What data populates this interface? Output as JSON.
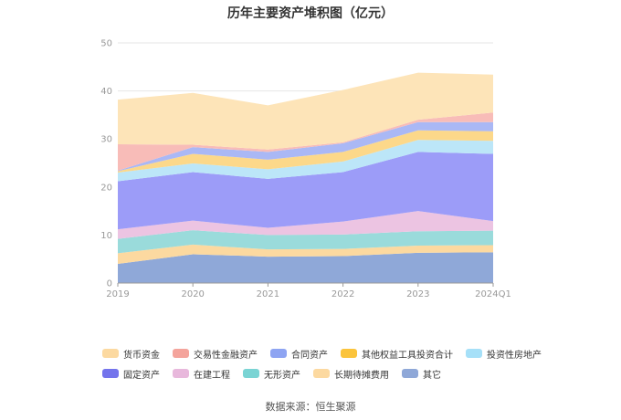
{
  "chart_data": {
    "type": "area",
    "stacked": true,
    "title": "历年主要资产堆积图（亿元）",
    "x": [
      "2019",
      "2020",
      "2021",
      "2022",
      "2023",
      "2024Q1"
    ],
    "ylim": [
      0,
      50
    ],
    "yticks": [
      0,
      10,
      20,
      30,
      40,
      50
    ],
    "grid": true,
    "legend_position": "bottom",
    "series": [
      {
        "name": "其它",
        "color": "#8fa8d8",
        "values": [
          4.0,
          6.0,
          5.5,
          5.6,
          6.3,
          6.4
        ]
      },
      {
        "name": "长期待摊费用",
        "color": "#fcd9a0",
        "values": [
          2.2,
          2.0,
          1.5,
          1.5,
          1.5,
          1.5
        ]
      },
      {
        "name": "无形资产",
        "color": "#9adbdb",
        "values": [
          3.0,
          3.0,
          3.0,
          3.0,
          3.0,
          3.0
        ]
      },
      {
        "name": "在建工程",
        "color": "#ecc4e2",
        "values": [
          2.0,
          2.0,
          1.5,
          2.7,
          4.2,
          2.0
        ]
      },
      {
        "name": "固定资产",
        "color": "#9c9cf8",
        "values": [
          10.0,
          10.1,
          10.2,
          10.3,
          12.3,
          14.0
        ]
      },
      {
        "name": "投资性房地产",
        "color": "#bce6f8",
        "values": [
          1.8,
          1.8,
          2.0,
          2.2,
          2.5,
          2.7
        ]
      },
      {
        "name": "其他权益工具投资合计",
        "color": "#fcd88a",
        "values": [
          0.3,
          2.0,
          2.0,
          2.0,
          2.0,
          2.0
        ]
      },
      {
        "name": "合同资产",
        "color": "#aab8f5",
        "values": [
          0.1,
          1.4,
          1.6,
          1.8,
          1.7,
          1.9
        ]
      },
      {
        "name": "交易性金融资产",
        "color": "#f8bcb8",
        "values": [
          5.5,
          0.5,
          0.5,
          0.2,
          0.5,
          2.0
        ]
      },
      {
        "name": "货币资金",
        "color": "#fde4b8",
        "values": [
          9.3,
          10.8,
          9.2,
          10.9,
          9.8,
          7.9
        ]
      }
    ],
    "legend_order": [
      "货币资金",
      "交易性金融资产",
      "合同资产",
      "其他权益工具投资合计",
      "投资性房地产",
      "固定资产",
      "在建工程",
      "无形资产",
      "长期待摊费用",
      "其它"
    ],
    "legend_colors": {
      "货币资金": "#fcd9a0",
      "交易性金融资产": "#f4a49c",
      "合同资产": "#8ea4f2",
      "其他权益工具投资合计": "#fbc43c",
      "投资性房地产": "#a6e0f8",
      "固定资产": "#7474ec",
      "在建工程": "#e8b8dc",
      "无形资产": "#7ad4d4",
      "长期待摊费用": "#fcd9a0",
      "其它": "#8fa8d8"
    },
    "source": "数据来源：恒生聚源"
  }
}
